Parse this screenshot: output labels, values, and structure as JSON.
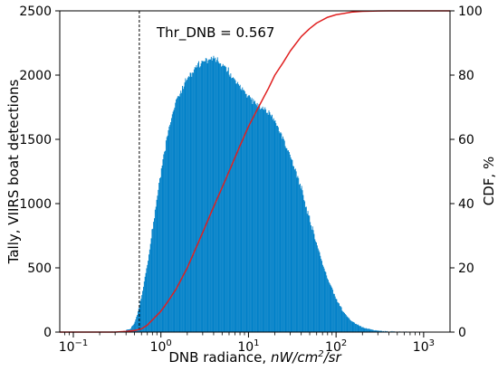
{
  "chart_data": {
    "type": "histogram",
    "x_scale": "log",
    "xlim": [
      0.07,
      2000
    ],
    "ylim_left": [
      0,
      2500
    ],
    "ylim_right": [
      0,
      100
    ],
    "xlabel": {
      "prefix": "DNB radiance, ",
      "unit_base": "nW/cm",
      "unit_exponent": "2",
      "unit_suffix": "/sr"
    },
    "ylabel_left": "Tally, VIIRS boat detections",
    "ylabel_right": "CDF, %",
    "annotation": "Thr_DNB = 0.567",
    "threshold": 0.567,
    "colors": {
      "histogram": "#0080c8",
      "cdf": "#e02020",
      "left_label": "#0000cc",
      "right_label": "#e02020",
      "threshold": "#000000"
    },
    "left_ticks": [
      {
        "value": 0,
        "label": "0"
      },
      {
        "value": 500,
        "label": "500"
      },
      {
        "value": 1000,
        "label": "1000"
      },
      {
        "value": 1500,
        "label": "1500"
      },
      {
        "value": 2000,
        "label": "2000"
      },
      {
        "value": 2500,
        "label": "2500"
      }
    ],
    "right_ticks": [
      {
        "value": 0,
        "label": "0"
      },
      {
        "value": 20,
        "label": "20"
      },
      {
        "value": 40,
        "label": "40"
      },
      {
        "value": 60,
        "label": "60"
      },
      {
        "value": 80,
        "label": "80"
      },
      {
        "value": 100,
        "label": "100"
      }
    ],
    "x_ticks": [
      {
        "value": 0.1,
        "base": "10",
        "exponent": "−1"
      },
      {
        "value": 1,
        "base": "10",
        "exponent": "0"
      },
      {
        "value": 10,
        "base": "10",
        "exponent": "1"
      },
      {
        "value": 100,
        "base": "10",
        "exponent": "2"
      },
      {
        "value": 1000,
        "base": "10",
        "exponent": "3"
      }
    ],
    "histogram_shape": [
      {
        "x": 0.07,
        "y": 0
      },
      {
        "x": 0.25,
        "y": 0
      },
      {
        "x": 0.35,
        "y": 3
      },
      {
        "x": 0.45,
        "y": 25
      },
      {
        "x": 0.5,
        "y": 70
      },
      {
        "x": 0.55,
        "y": 160
      },
      {
        "x": 0.6,
        "y": 280
      },
      {
        "x": 0.7,
        "y": 520
      },
      {
        "x": 0.8,
        "y": 800
      },
      {
        "x": 0.9,
        "y": 1050
      },
      {
        "x": 1.0,
        "y": 1250
      },
      {
        "x": 1.2,
        "y": 1560
      },
      {
        "x": 1.5,
        "y": 1800
      },
      {
        "x": 2.0,
        "y": 1980
      },
      {
        "x": 2.5,
        "y": 2060
      },
      {
        "x": 3.0,
        "y": 2110
      },
      {
        "x": 4.0,
        "y": 2130
      },
      {
        "x": 5.0,
        "y": 2080
      },
      {
        "x": 6.0,
        "y": 2020
      },
      {
        "x": 8.0,
        "y": 1910
      },
      {
        "x": 10.0,
        "y": 1830
      },
      {
        "x": 13.0,
        "y": 1760
      },
      {
        "x": 17.0,
        "y": 1710
      },
      {
        "x": 20.0,
        "y": 1650
      },
      {
        "x": 25.0,
        "y": 1500
      },
      {
        "x": 30.0,
        "y": 1370
      },
      {
        "x": 40.0,
        "y": 1120
      },
      {
        "x": 50.0,
        "y": 880
      },
      {
        "x": 60.0,
        "y": 690
      },
      {
        "x": 70.0,
        "y": 540
      },
      {
        "x": 80.0,
        "y": 420
      },
      {
        "x": 100.0,
        "y": 260
      },
      {
        "x": 120.0,
        "y": 160
      },
      {
        "x": 150.0,
        "y": 85
      },
      {
        "x": 200.0,
        "y": 35
      },
      {
        "x": 300.0,
        "y": 10
      },
      {
        "x": 500.0,
        "y": 2
      },
      {
        "x": 800.0,
        "y": 0
      },
      {
        "x": 2000.0,
        "y": 0
      }
    ],
    "cdf_curve": [
      {
        "x": 0.07,
        "y": 0
      },
      {
        "x": 0.3,
        "y": 0
      },
      {
        "x": 0.4,
        "y": 0.2
      },
      {
        "x": 0.5,
        "y": 0.5
      },
      {
        "x": 0.6,
        "y": 1.0
      },
      {
        "x": 0.7,
        "y": 2.2
      },
      {
        "x": 0.8,
        "y": 3.8
      },
      {
        "x": 1.0,
        "y": 6.5
      },
      {
        "x": 1.2,
        "y": 9.5
      },
      {
        "x": 1.5,
        "y": 13.5
      },
      {
        "x": 2.0,
        "y": 20.0
      },
      {
        "x": 3.0,
        "y": 31.0
      },
      {
        "x": 4.0,
        "y": 39.0
      },
      {
        "x": 5.0,
        "y": 45.0
      },
      {
        "x": 6.0,
        "y": 50.0
      },
      {
        "x": 8.0,
        "y": 58.0
      },
      {
        "x": 10.0,
        "y": 64.0
      },
      {
        "x": 13.0,
        "y": 70.0
      },
      {
        "x": 17.0,
        "y": 76.0
      },
      {
        "x": 20.0,
        "y": 80.0
      },
      {
        "x": 25.0,
        "y": 84.0
      },
      {
        "x": 30.0,
        "y": 87.5
      },
      {
        "x": 40.0,
        "y": 92.0
      },
      {
        "x": 50.0,
        "y": 94.5
      },
      {
        "x": 60.0,
        "y": 96.2
      },
      {
        "x": 80.0,
        "y": 98.0
      },
      {
        "x": 100.0,
        "y": 98.8
      },
      {
        "x": 150.0,
        "y": 99.6
      },
      {
        "x": 200.0,
        "y": 99.85
      },
      {
        "x": 300.0,
        "y": 99.96
      },
      {
        "x": 400.0,
        "y": 100
      },
      {
        "x": 2000.0,
        "y": 100
      }
    ]
  }
}
